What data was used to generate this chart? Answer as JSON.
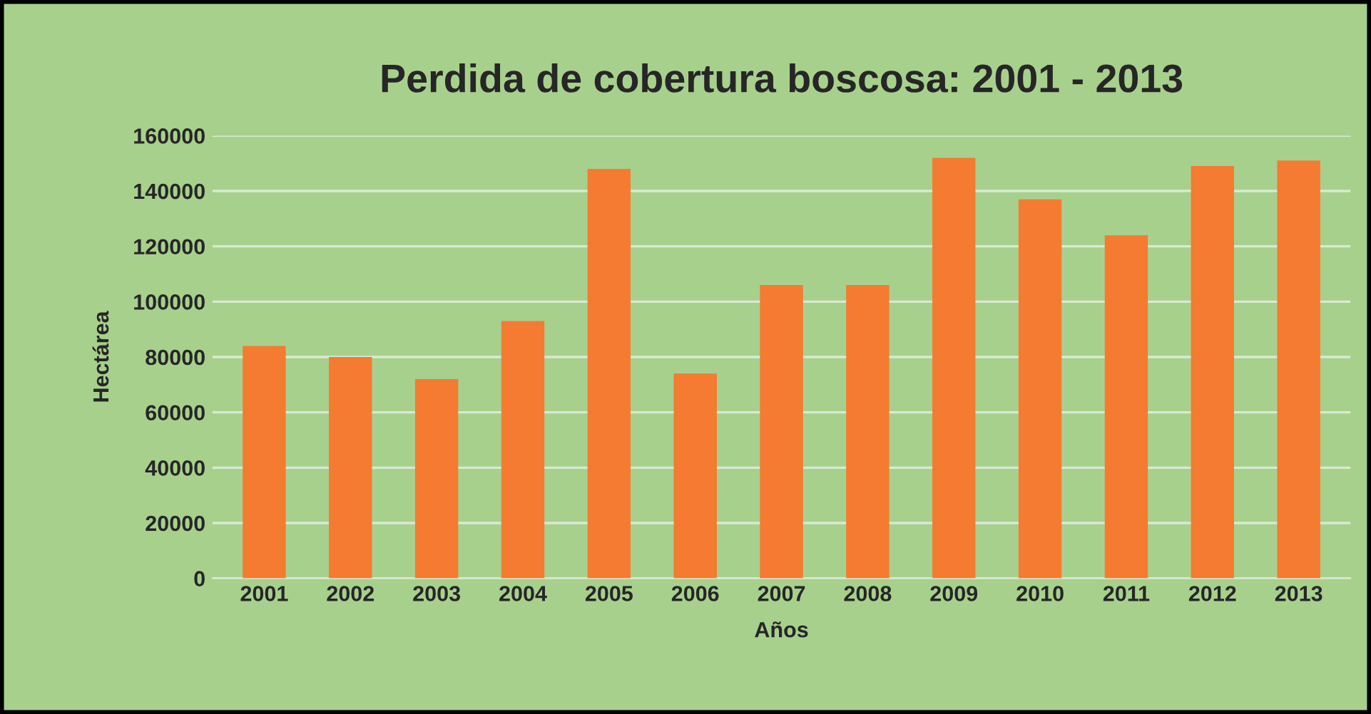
{
  "chart_data": {
    "type": "bar",
    "title": "Perdida de cobertura boscosa: 2001 - 2013",
    "xlabel": "Años",
    "ylabel": "Hectárea",
    "categories": [
      "2001",
      "2002",
      "2003",
      "2004",
      "2005",
      "2006",
      "2007",
      "2008",
      "2009",
      "2010",
      "2011",
      "2012",
      "2013"
    ],
    "values": [
      84000,
      80000,
      72000,
      93000,
      148000,
      74000,
      106000,
      106000,
      152000,
      137000,
      124000,
      149000,
      151000
    ],
    "color": "#f57a32",
    "ylim": [
      0,
      160000
    ],
    "yticks": [
      0,
      20000,
      40000,
      60000,
      80000,
      100000,
      120000,
      140000,
      160000
    ],
    "grid": "y",
    "legend": false
  }
}
